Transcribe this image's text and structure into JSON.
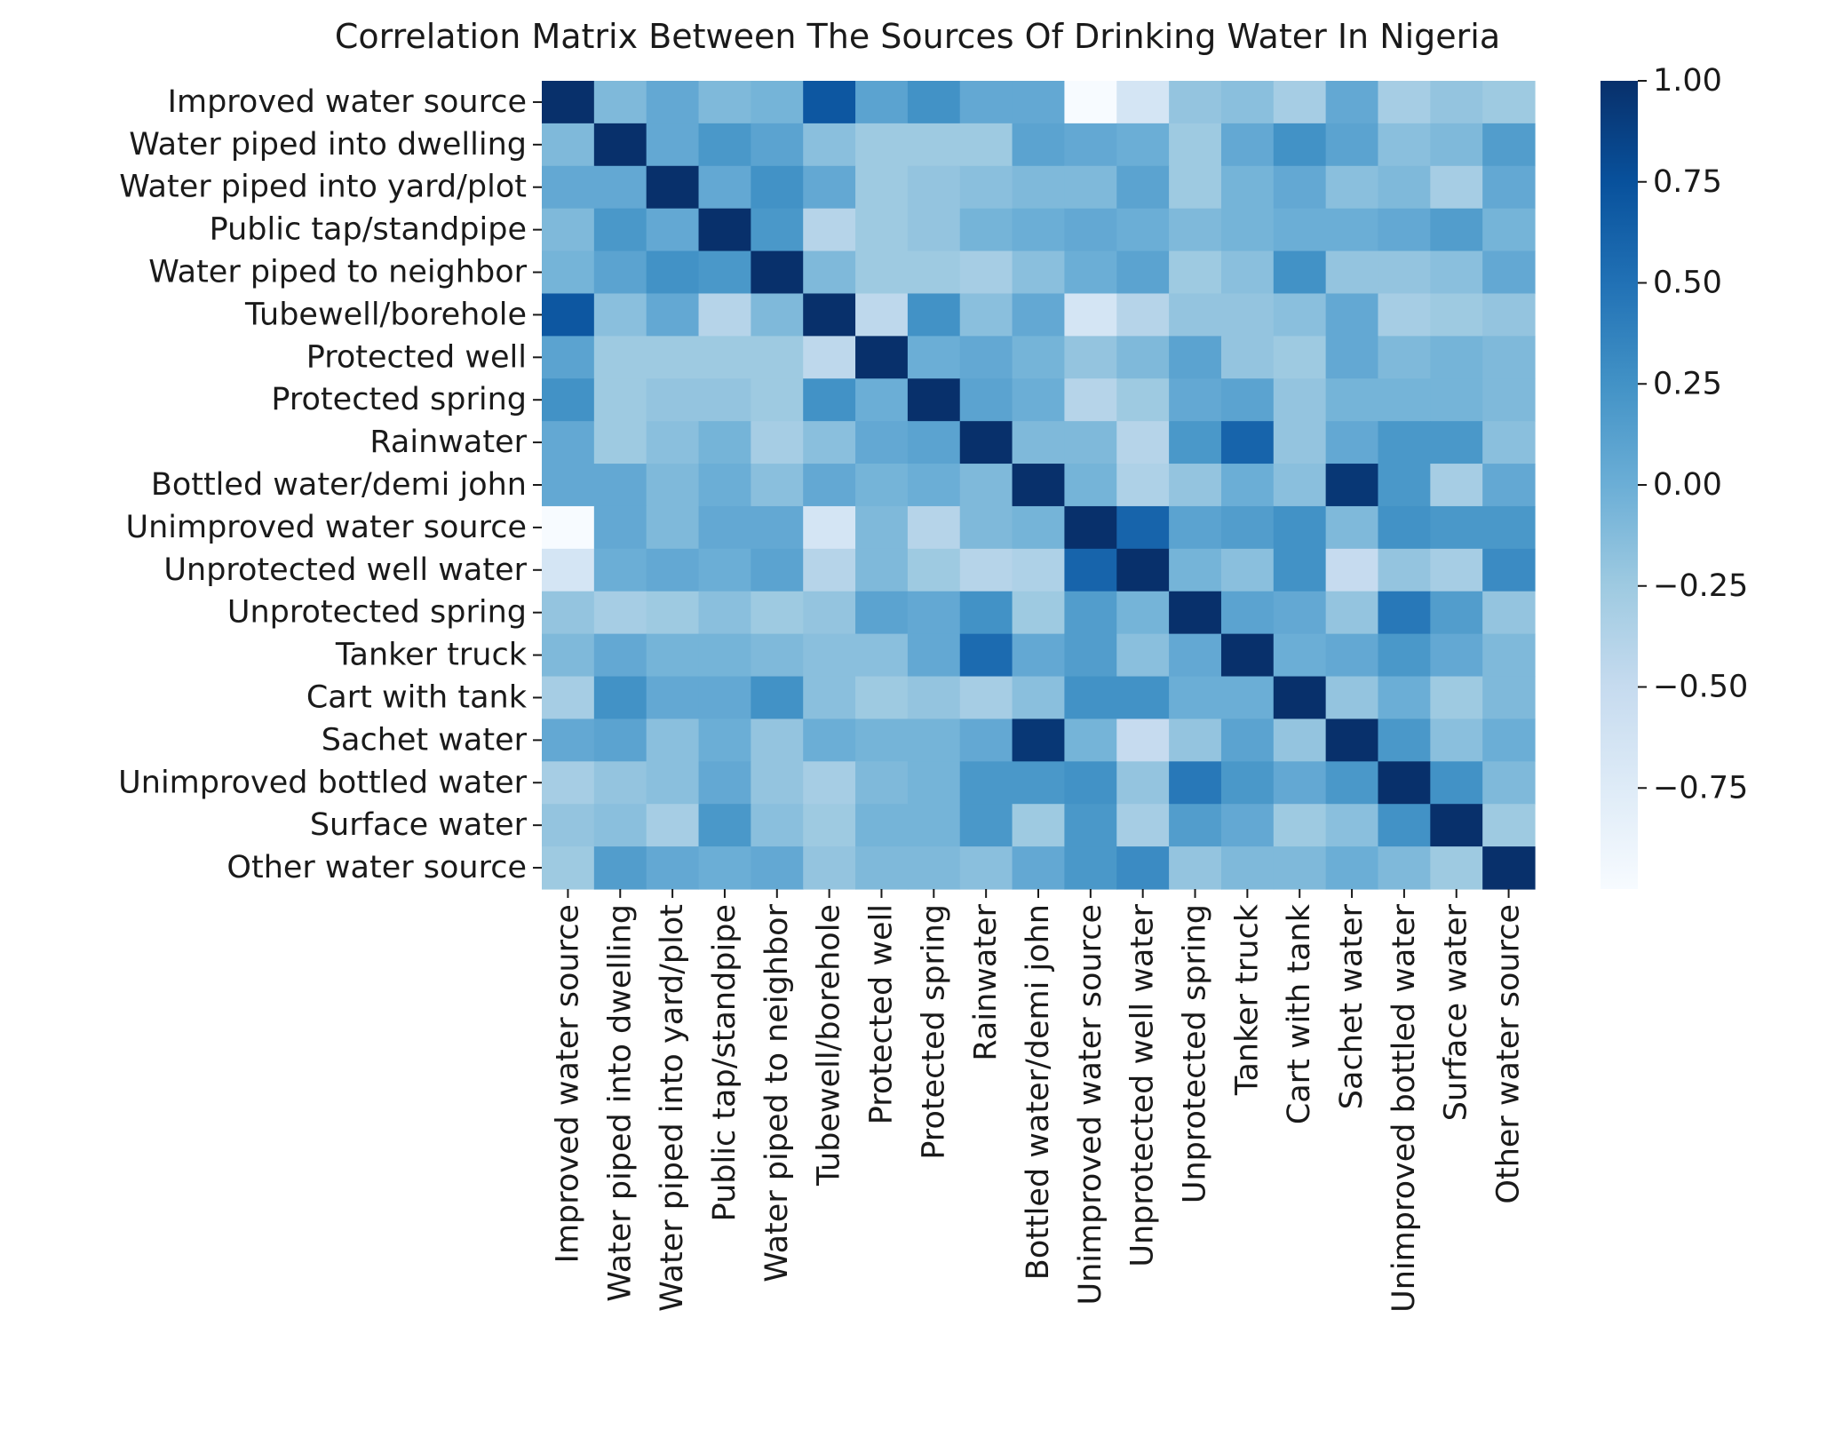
{
  "chart_data": {
    "type": "heatmap",
    "title": "Correlation Matrix Between The Sources Of Drinking Water In Nigeria",
    "xlabel": "",
    "ylabel": "",
    "colormap": "Blues",
    "colormap_stops": [
      "#f7fbff",
      "#deebf7",
      "#c6dbef",
      "#9ecae1",
      "#6baed6",
      "#4292c6",
      "#2171b5",
      "#08519c",
      "#08306b"
    ],
    "vmin": -1.0,
    "vmax": 1.0,
    "colorbar_ticks": [
      "1.00",
      "0.75",
      "0.50",
      "0.25",
      "0.00",
      "−0.25",
      "−0.50",
      "−0.75"
    ],
    "colorbar_tick_values": [
      1.0,
      0.75,
      0.5,
      0.25,
      0.0,
      -0.25,
      -0.5,
      -0.75
    ],
    "categories": [
      "Improved water source",
      "Water piped into dwelling",
      "Water piped into yard/plot",
      "Public tap/standpipe",
      "Water piped to neighbor",
      "Tubewell/borehole",
      "Protected well",
      "Protected spring",
      "Rainwater",
      "Bottled water/demi john",
      "Unimproved water source",
      "Unprotected well water",
      "Unprotected spring",
      "Tanker truck",
      "Cart with tank",
      "Sachet water",
      "Unimproved bottled water",
      "Surface water",
      "Other water source"
    ],
    "matrix": [
      [
        1.0,
        -0.1,
        0.05,
        -0.1,
        -0.05,
        0.7,
        0.1,
        0.25,
        0.05,
        0.05,
        -1.0,
        -0.65,
        -0.2,
        -0.15,
        -0.3,
        0.05,
        -0.3,
        -0.2,
        -0.25
      ],
      [
        -0.1,
        1.0,
        0.05,
        0.2,
        0.1,
        -0.15,
        -0.25,
        -0.25,
        -0.25,
        0.1,
        0.05,
        0.0,
        -0.25,
        0.05,
        0.25,
        0.1,
        -0.15,
        -0.1,
        0.15
      ],
      [
        0.05,
        0.05,
        1.0,
        0.05,
        0.25,
        0.05,
        -0.25,
        -0.2,
        -0.15,
        -0.1,
        -0.1,
        0.1,
        -0.25,
        -0.05,
        0.05,
        -0.15,
        -0.1,
        -0.3,
        0.05
      ],
      [
        -0.1,
        0.2,
        0.05,
        1.0,
        0.2,
        -0.4,
        -0.25,
        -0.2,
        -0.05,
        0.0,
        0.05,
        0.0,
        -0.1,
        -0.05,
        0.0,
        0.0,
        0.05,
        0.15,
        -0.05
      ],
      [
        -0.05,
        0.1,
        0.25,
        0.2,
        1.0,
        -0.1,
        -0.25,
        -0.25,
        -0.3,
        -0.15,
        0.0,
        0.1,
        -0.25,
        -0.15,
        0.25,
        -0.2,
        -0.2,
        -0.15,
        0.05
      ],
      [
        0.7,
        -0.15,
        0.05,
        -0.4,
        -0.1,
        1.0,
        -0.45,
        0.25,
        -0.15,
        0.05,
        -0.65,
        -0.4,
        -0.2,
        -0.2,
        -0.15,
        0.05,
        -0.3,
        -0.25,
        -0.2
      ],
      [
        0.1,
        -0.25,
        -0.25,
        -0.25,
        -0.25,
        -0.45,
        1.0,
        0.0,
        0.05,
        -0.05,
        -0.2,
        -0.1,
        0.1,
        -0.2,
        -0.25,
        0.05,
        -0.1,
        -0.05,
        -0.1
      ],
      [
        0.25,
        -0.25,
        -0.2,
        -0.2,
        -0.25,
        0.25,
        0.0,
        1.0,
        0.1,
        0.0,
        -0.4,
        -0.25,
        0.05,
        0.1,
        -0.2,
        -0.05,
        -0.05,
        -0.05,
        -0.1
      ],
      [
        0.05,
        -0.25,
        -0.15,
        -0.05,
        -0.3,
        -0.15,
        0.05,
        0.1,
        1.0,
        -0.1,
        -0.1,
        -0.4,
        0.2,
        0.6,
        -0.2,
        0.05,
        0.2,
        0.2,
        -0.15
      ],
      [
        0.05,
        0.05,
        -0.1,
        0.0,
        -0.15,
        0.05,
        -0.05,
        0.0,
        -0.1,
        1.0,
        -0.05,
        -0.35,
        -0.2,
        0.0,
        -0.15,
        0.95,
        0.2,
        -0.3,
        0.05
      ],
      [
        -1.0,
        0.05,
        -0.1,
        0.05,
        0.05,
        -0.65,
        -0.1,
        -0.4,
        -0.1,
        -0.05,
        1.0,
        0.6,
        0.1,
        0.15,
        0.25,
        -0.1,
        0.25,
        0.2,
        0.2
      ],
      [
        -0.65,
        0.0,
        0.05,
        0.0,
        0.1,
        -0.4,
        -0.1,
        -0.25,
        -0.4,
        -0.35,
        0.6,
        1.0,
        -0.05,
        -0.15,
        0.25,
        -0.5,
        -0.2,
        -0.3,
        0.3
      ],
      [
        -0.2,
        -0.3,
        -0.25,
        -0.15,
        -0.25,
        -0.2,
        0.1,
        0.05,
        0.25,
        -0.25,
        0.15,
        -0.05,
        1.0,
        0.1,
        0.05,
        -0.2,
        0.45,
        0.15,
        -0.2
      ],
      [
        -0.1,
        0.05,
        -0.05,
        -0.05,
        -0.1,
        -0.15,
        -0.15,
        0.05,
        0.55,
        0.05,
        0.15,
        -0.15,
        0.05,
        1.0,
        0.0,
        0.05,
        0.2,
        0.05,
        -0.1
      ],
      [
        -0.3,
        0.25,
        0.05,
        0.05,
        0.25,
        -0.15,
        -0.25,
        -0.2,
        -0.3,
        -0.15,
        0.25,
        0.25,
        0.0,
        0.0,
        1.0,
        -0.2,
        0.0,
        -0.25,
        -0.1
      ],
      [
        0.05,
        0.1,
        -0.15,
        0.0,
        -0.2,
        0.0,
        -0.05,
        -0.05,
        0.05,
        0.95,
        -0.05,
        -0.5,
        -0.2,
        0.1,
        -0.2,
        1.0,
        0.2,
        -0.15,
        0.0
      ],
      [
        -0.3,
        -0.2,
        -0.15,
        0.05,
        -0.2,
        -0.3,
        -0.1,
        -0.05,
        0.2,
        0.2,
        0.25,
        -0.2,
        0.45,
        0.2,
        0.05,
        0.2,
        1.0,
        0.25,
        -0.1
      ],
      [
        -0.2,
        -0.15,
        -0.3,
        0.2,
        -0.15,
        -0.25,
        -0.05,
        -0.05,
        0.2,
        -0.25,
        0.2,
        -0.3,
        0.15,
        0.05,
        -0.25,
        -0.15,
        0.25,
        1.0,
        -0.25
      ],
      [
        -0.25,
        0.15,
        0.05,
        0.0,
        0.05,
        -0.2,
        -0.1,
        -0.1,
        -0.15,
        0.05,
        0.2,
        0.3,
        -0.2,
        -0.1,
        -0.1,
        0.0,
        -0.1,
        -0.25,
        1.0
      ]
    ]
  }
}
